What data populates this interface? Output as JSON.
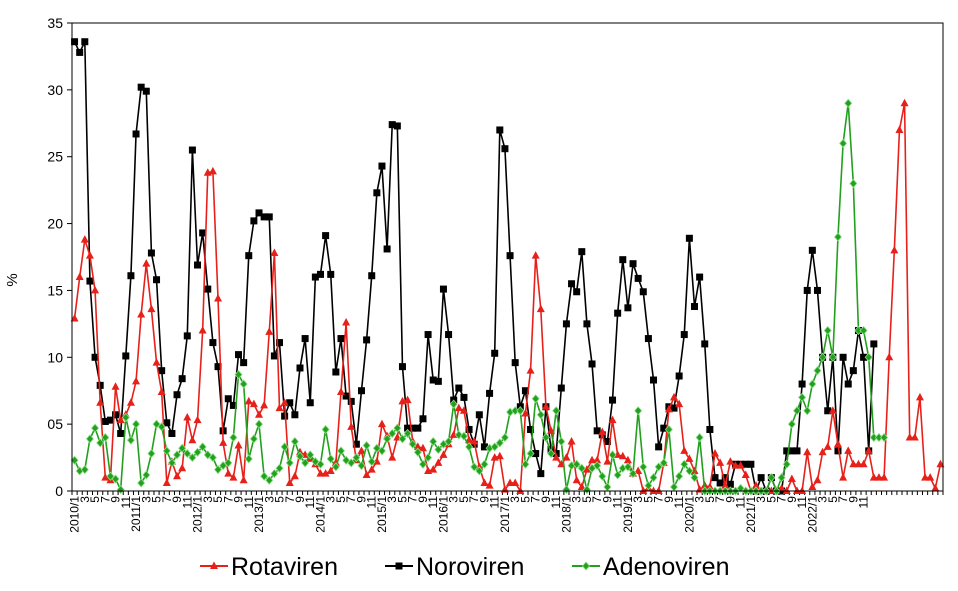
{
  "chart_data": {
    "type": "line",
    "ylabel": "%",
    "ylim": [
      0,
      35
    ],
    "yticks": [
      "0",
      "05",
      "10",
      "15",
      "20",
      "25",
      "30",
      "35"
    ],
    "x_tick_labels": [
      "2010/1",
      "3",
      "5",
      "7",
      "9",
      "11",
      "2011/1",
      "3",
      "5",
      "7",
      "9",
      "11",
      "2012/1",
      "3",
      "5",
      "7",
      "9",
      "11",
      "2013/1",
      "3",
      "5",
      "7",
      "9",
      "11",
      "2014/1",
      "3",
      "5",
      "7",
      "9",
      "11",
      "2015/1",
      "3",
      "5",
      "7",
      "9",
      "11",
      "2016/1",
      "3",
      "5",
      "7",
      "9",
      "11",
      "2017/1",
      "3",
      "5",
      "7",
      "9",
      "11",
      "2018/1",
      "3",
      "5",
      "7",
      "9",
      "11",
      "2019/1",
      "3",
      "5",
      "7",
      "9",
      "11",
      "2020/1",
      "3",
      "5",
      "7",
      "9",
      "11",
      "2021/1",
      "3",
      "5",
      "7",
      "9",
      "11",
      "2022/1",
      "3",
      "5",
      "7",
      "9",
      "11"
    ],
    "grid": false,
    "legend_position": "bottom",
    "series": [
      {
        "name": "Rotaviren",
        "color": "#e8201a",
        "marker": "triangle",
        "values": [
          12.9,
          16.0,
          18.8,
          17.6,
          15.0,
          6.6,
          1.0,
          0.8,
          7.8,
          5.3,
          5.7,
          6.6,
          8.2,
          13.2,
          17.0,
          13.6,
          9.6,
          7.4,
          0.6,
          2.2,
          1.1,
          1.7,
          5.5,
          3.8,
          5.3,
          12.0,
          23.8,
          23.9,
          14.4,
          3.6,
          1.3,
          1.0,
          3.4,
          0.8,
          6.7,
          6.5,
          5.7,
          6.4,
          11.9,
          17.8,
          6.2,
          6.6,
          0.6,
          1.1,
          2.9,
          2.7,
          2.4,
          2.0,
          1.3,
          1.3,
          1.5,
          2.1,
          7.4,
          12.6,
          4.8,
          2.3,
          3.0,
          1.2,
          1.6,
          2.2,
          5.0,
          4.1,
          2.5,
          4.0,
          6.7,
          6.8,
          3.7,
          3.3,
          3.2,
          1.5,
          1.6,
          2.1,
          2.7,
          3.5,
          4.2,
          6.2,
          6.0,
          3.8,
          3.7,
          1.8,
          0.6,
          0.4,
          2.5,
          2.6,
          0.1,
          0.6,
          0.6,
          0.0,
          5.8,
          9.0,
          17.6,
          13.6,
          6.3,
          4.5,
          2.5,
          2.0,
          2.5,
          3.7,
          0.8,
          0.3,
          1.6,
          2.3,
          2.3,
          4.4,
          2.2,
          5.3,
          2.7,
          2.6,
          2.3,
          1.3,
          1.5,
          0.0,
          0.2,
          0.0,
          0.0,
          2.1,
          6.1,
          7.0,
          6.5,
          3.0,
          2.4,
          1.5,
          0.1,
          0.4,
          0.3,
          2.8,
          2.1,
          0.4,
          2.2,
          1.9,
          1.9,
          1.2,
          0.0,
          0.4,
          0.0,
          0.0,
          0.0,
          0.0,
          0.2,
          0.0,
          0.9,
          0.0,
          0.0,
          2.9,
          0.3,
          0.8,
          2.9,
          3.3,
          6.0,
          3.5,
          1.0,
          3.0,
          2.0,
          2.0,
          2.0,
          3.0,
          1.0,
          1.0,
          1.0,
          10.0,
          18.0,
          27.0,
          29.0,
          4.0,
          4.0,
          7.0,
          1.0,
          1.0,
          0.2,
          2.0
        ]
      },
      {
        "name": "Noroviren",
        "color": "#000000",
        "marker": "square",
        "values": [
          33.6,
          32.8,
          33.6,
          15.7,
          10.0,
          7.9,
          5.2,
          5.3,
          5.7,
          4.3,
          10.1,
          16.1,
          26.7,
          30.2,
          29.9,
          17.8,
          15.8,
          9.0,
          5.1,
          4.3,
          7.2,
          8.4,
          11.6,
          25.5,
          16.9,
          19.3,
          15.1,
          11.1,
          9.3,
          4.5,
          6.9,
          6.4,
          10.2,
          9.6,
          17.6,
          20.2,
          20.8,
          20.5,
          20.5,
          10.1,
          11.1,
          5.6,
          6.6,
          5.7,
          9.2,
          11.4,
          6.6,
          16.0,
          16.2,
          19.1,
          16.2,
          8.9,
          11.4,
          7.1,
          6.7,
          3.5,
          7.5,
          11.3,
          16.1,
          22.3,
          24.3,
          18.1,
          27.4,
          27.3,
          9.3,
          4.7,
          4.7,
          4.7,
          5.4,
          11.7,
          8.3,
          8.2,
          15.1,
          11.7,
          6.8,
          7.7,
          7.0,
          4.6,
          3.5,
          5.7,
          3.3,
          7.3,
          10.3,
          27.0,
          25.6,
          17.6,
          9.6,
          6.3,
          7.5,
          4.6,
          2.8,
          1.3,
          6.3,
          3.1,
          2.8,
          7.7,
          12.5,
          15.5,
          14.9,
          17.9,
          12.5,
          9.5,
          4.5,
          4.2,
          3.7,
          6.8,
          13.3,
          17.3,
          13.7,
          17.0,
          15.9,
          14.9,
          11.4,
          8.3,
          3.3,
          4.7,
          6.3,
          6.2,
          8.6,
          11.7,
          18.9,
          13.8,
          16.0,
          11.0,
          4.6,
          1.0,
          0.6,
          1.0,
          0.5,
          2.0,
          2.0,
          2.0,
          2.0,
          0.0,
          1.0,
          0.0,
          1.0,
          0.0,
          0.0,
          3.0,
          3.0,
          3.0,
          8.0,
          15.0,
          18.0,
          15.0,
          10.0,
          6.0,
          10.0,
          3.0,
          10.0,
          8.0,
          9.0,
          12.0,
          10.0,
          3.0,
          11.0
        ]
      },
      {
        "name": "Adenoviren",
        "color": "#22a01e",
        "marker": "diamond",
        "values": [
          2.3,
          1.5,
          1.6,
          3.9,
          4.7,
          3.6,
          4.0,
          1.1,
          0.9,
          0.1,
          5.5,
          3.8,
          5.0,
          0.6,
          1.2,
          2.8,
          5.0,
          4.8,
          3.0,
          2.1,
          2.7,
          3.2,
          2.8,
          2.5,
          2.9,
          3.3,
          2.7,
          2.5,
          1.6,
          1.9,
          2.1,
          4.0,
          8.7,
          8.0,
          2.4,
          3.9,
          5.0,
          1.1,
          0.8,
          1.3,
          1.7,
          3.3,
          2.1,
          3.7,
          2.6,
          2.1,
          2.7,
          2.2,
          2.0,
          4.6,
          2.4,
          1.8,
          3.0,
          2.3,
          2.1,
          2.5,
          1.9,
          3.4,
          2.2,
          3.2,
          3.0,
          3.9,
          4.3,
          4.7,
          3.9,
          4.3,
          3.5,
          2.9,
          2.0,
          2.5,
          3.7,
          3.1,
          3.5,
          3.7,
          6.5,
          4.2,
          4.1,
          3.3,
          1.8,
          1.5,
          2.0,
          3.2,
          3.3,
          3.6,
          4.0,
          5.9,
          6.0,
          6.0,
          2.0,
          2.8,
          6.9,
          5.7,
          4.0,
          2.8,
          6.0,
          3.7,
          0.1,
          1.9,
          2.0,
          1.7,
          0.1,
          1.7,
          1.9,
          1.1,
          0.3,
          2.7,
          1.2,
          1.7,
          1.8,
          1.3,
          6.0,
          1.8,
          0.4,
          1.0,
          1.8,
          2.1,
          4.6,
          0.3,
          1.1,
          2.0,
          1.5,
          1.0,
          4.0,
          0.0,
          0.0,
          0.0,
          0.0,
          0.0,
          0.0,
          0.0,
          0.2,
          0.0,
          0.0,
          0.0,
          0.0,
          0.0,
          1.0,
          0.0,
          1.0,
          2.0,
          5.0,
          6.0,
          7.0,
          6.0,
          8.0,
          9.0,
          10.0,
          12.0,
          10.0,
          19.0,
          26.0,
          29.0,
          23.0,
          12.0,
          12.0,
          10.0,
          4.0,
          4.0,
          4.0
        ]
      }
    ]
  }
}
